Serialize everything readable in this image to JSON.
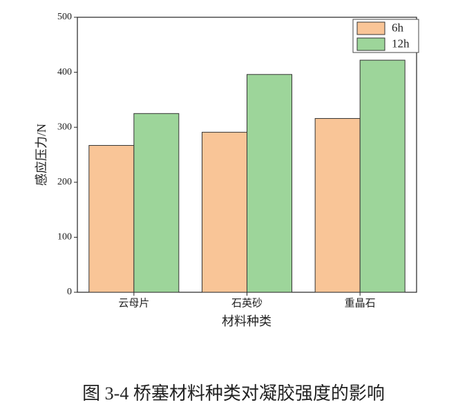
{
  "chart_data": {
    "type": "bar",
    "categories": [
      "云母片",
      "石英砂",
      "重晶石"
    ],
    "series": [
      {
        "name": "6h",
        "color": "#f9c597",
        "values": [
          267,
          291,
          316
        ]
      },
      {
        "name": "12h",
        "color": "#9dd59a",
        "values": [
          325,
          396,
          422
        ]
      }
    ],
    "ylim": [
      0,
      500
    ],
    "yticks": [
      0,
      100,
      200,
      300,
      400,
      500
    ],
    "y_label": "感应压力/N",
    "x_label": "材料种类",
    "caption": "图 3-4  桥塞材料种类对凝胶强度的影响",
    "legend": "top-right"
  }
}
